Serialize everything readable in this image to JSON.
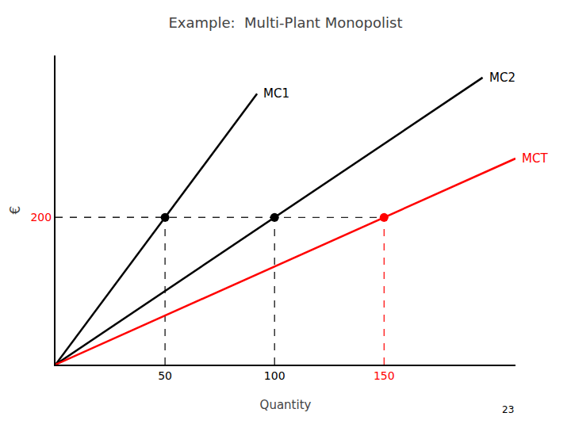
{
  "chart_data": {
    "type": "line",
    "title": "Example:  Multi-Plant Monopolist",
    "xlabel": "Quantity",
    "ylabel": "€",
    "xlim": [
      0,
      210
    ],
    "ylim": [
      0,
      420
    ],
    "xticks": [
      50,
      100,
      150
    ],
    "yticks": [
      200
    ],
    "grid": false,
    "series": [
      {
        "name": "MC1",
        "color": "black",
        "x": [
          0,
          92
        ],
        "values": [
          0,
          368
        ]
      },
      {
        "name": "MC2",
        "color": "black",
        "x": [
          0,
          195
        ],
        "values": [
          0,
          390
        ]
      },
      {
        "name": "MCT",
        "color": "red",
        "x": [
          0,
          210
        ],
        "values": [
          0,
          279.993
        ]
      },
      {
        "type": "scatter",
        "x": [
          50,
          100,
          150
        ],
        "values": [
          200,
          200,
          200
        ],
        "colors": [
          "black",
          "black",
          "red"
        ],
        "line_style": "dashed"
      }
    ],
    "annotations": [
      "23"
    ]
  }
}
